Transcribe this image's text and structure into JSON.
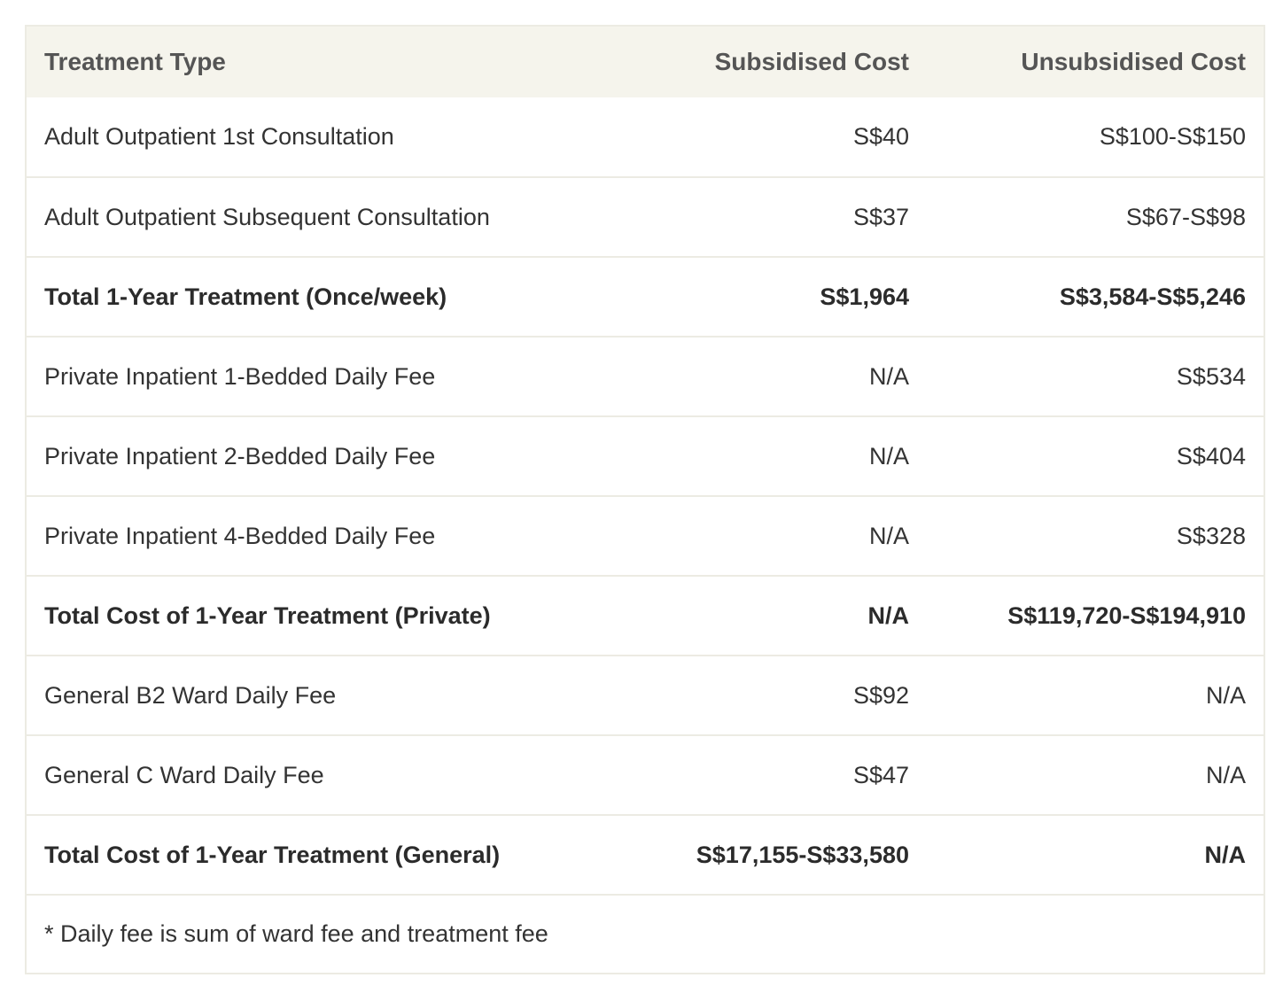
{
  "table": {
    "headers": [
      "Treatment Type",
      "Subsidised Cost",
      "Unsubsidised Cost"
    ],
    "rows": [
      {
        "type": "Adult Outpatient 1st Consultation",
        "subsidised": "S$40",
        "unsubsidised": "S$100-S$150",
        "bold": false
      },
      {
        "type": "Adult Outpatient Subsequent Consultation",
        "subsidised": "S$37",
        "unsubsidised": "S$67-S$98",
        "bold": false
      },
      {
        "type": "Total 1-Year Treatment (Once/week)",
        "subsidised": "S$1,964",
        "unsubsidised": "S$3,584-S$5,246",
        "bold": true
      },
      {
        "type": "Private Inpatient 1-Bedded Daily Fee",
        "subsidised": "N/A",
        "unsubsidised": "S$534",
        "bold": false
      },
      {
        "type": "Private Inpatient 2-Bedded Daily Fee",
        "subsidised": "N/A",
        "unsubsidised": "S$404",
        "bold": false
      },
      {
        "type": "Private Inpatient 4-Bedded Daily Fee",
        "subsidised": "N/A",
        "unsubsidised": "S$328",
        "bold": false
      },
      {
        "type": "Total Cost of 1-Year Treatment (Private)",
        "subsidised": "N/A",
        "unsubsidised": "S$119,720-S$194,910",
        "bold": true
      },
      {
        "type": "General B2 Ward Daily Fee",
        "subsidised": "S$92",
        "unsubsidised": "N/A",
        "bold": false
      },
      {
        "type": "General C Ward Daily Fee",
        "subsidised": "S$47",
        "unsubsidised": "N/A",
        "bold": false
      },
      {
        "type": "Total Cost of 1-Year Treatment (General)",
        "subsidised": "S$17,155-S$33,580",
        "unsubsidised": "N/A",
        "bold": true
      }
    ],
    "footnote": "* Daily fee is sum of ward fee and treatment fee"
  },
  "colors": {
    "header_bg": "#f5f4ec",
    "border": "#ecebe3",
    "text": "#333333"
  }
}
